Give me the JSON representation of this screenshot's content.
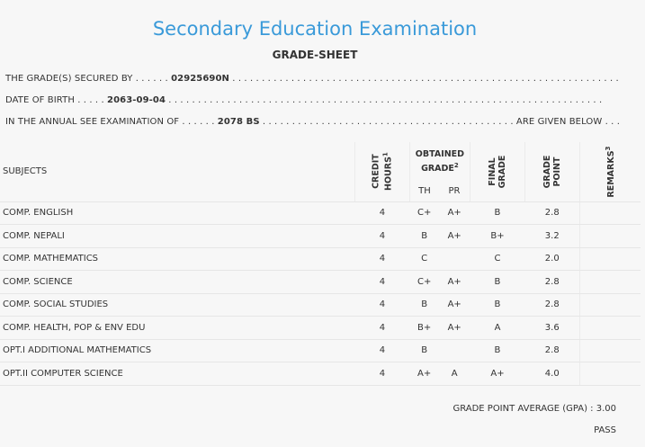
{
  "header": {
    "title": "Secondary Education Examination",
    "subtitle": "GRADE-SHEET"
  },
  "info": {
    "secured_by_label": "THE GRADE(S) SECURED BY . . . . . .",
    "secured_by_value": "02925690N",
    "secured_by_dots": ". . . . . . . . . . . . . . . . . . . . . . . . . . . . . . . . . . . . . . . . . . . . . . . . . . . . . . . . . . . . . . . . . .",
    "dob_label": "DATE OF BIRTH . . . . .",
    "dob_value": "2063-09-04",
    "dob_dots": ". . . . . . . . . . . . . . . . . . . . . . . . . . . . . . . . . . . . . . . . . . . . . . . . . . . . . . . . . . . . . . . . . . . . . . . . . .",
    "exam_label": "IN THE ANNUAL SEE EXAMINATION OF . . . . . .",
    "exam_value": "2078 BS",
    "exam_dots": ". . . . . . . . . . . . . . . . . . . . . . . . . . . . . . . . . . . . . . . . . . .",
    "exam_tail": "ARE GIVEN BELOW . . ."
  },
  "table": {
    "headers": {
      "subjects": "SUBJECTS",
      "credit_hours": "CREDIT HOURS",
      "credit_sup": "1",
      "obtained_grade": "OBTAINED GRADE",
      "obtained_sup": "2",
      "th": "TH",
      "pr": "PR",
      "final_grade": "FINAL GRADE",
      "grade_point": "GRADE POINT",
      "remarks": "REMARKS",
      "remarks_sup": "3"
    },
    "rows": [
      {
        "subject": "COMP. ENGLISH",
        "credit": "4",
        "th": "C+",
        "pr": "A+",
        "final": "B",
        "gp": "2.8",
        "remarks": ""
      },
      {
        "subject": "COMP. NEPALI",
        "credit": "4",
        "th": "B",
        "pr": "A+",
        "final": "B+",
        "gp": "3.2",
        "remarks": ""
      },
      {
        "subject": "COMP. MATHEMATICS",
        "credit": "4",
        "th": "C",
        "pr": "",
        "final": "C",
        "gp": "2.0",
        "remarks": ""
      },
      {
        "subject": "COMP. SCIENCE",
        "credit": "4",
        "th": "C+",
        "pr": "A+",
        "final": "B",
        "gp": "2.8",
        "remarks": ""
      },
      {
        "subject": "COMP. SOCIAL STUDIES",
        "credit": "4",
        "th": "B",
        "pr": "A+",
        "final": "B",
        "gp": "2.8",
        "remarks": ""
      },
      {
        "subject": "COMP. HEALTH, POP & ENV EDU",
        "credit": "4",
        "th": "B+",
        "pr": "A+",
        "final": "A",
        "gp": "3.6",
        "remarks": ""
      },
      {
        "subject": "OPT.I ADDITIONAL MATHEMATICS",
        "credit": "4",
        "th": "B",
        "pr": "",
        "final": "B",
        "gp": "2.8",
        "remarks": ""
      },
      {
        "subject": "OPT.II COMPUTER SCIENCE",
        "credit": "4",
        "th": "A+",
        "pr": "A",
        "final": "A+",
        "gp": "4.0",
        "remarks": ""
      }
    ]
  },
  "footer": {
    "gpa_label": "GRADE POINT AVERAGE (GPA) :",
    "gpa_value": "3.00",
    "result": "PASS"
  },
  "colors": {
    "title": "#3a9ad9",
    "background": "#f7f7f7"
  }
}
